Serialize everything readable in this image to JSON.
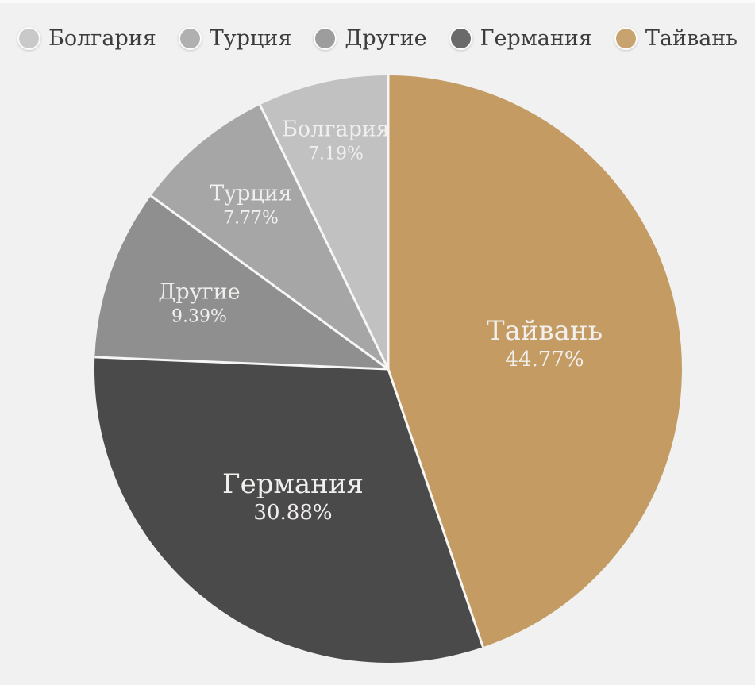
{
  "chart_data": {
    "type": "pie",
    "title": "",
    "legend_position": "top",
    "background_color": "#f1f1f1",
    "separator_color": "#f7f6f4",
    "label_text_color": "#f2f0ee",
    "legend_text_color": "#3c3c3c",
    "slices": [
      {
        "id": "bulgaria",
        "label": "Болгария",
        "value": 7.19,
        "percent_label": "7.19%",
        "color": "#c1c1c1",
        "legend_color": "#c9c9c9"
      },
      {
        "id": "turkey",
        "label": "Турция",
        "value": 7.77,
        "percent_label": "7.77%",
        "color": "#a6a6a6",
        "legend_color": "#b0b0b0"
      },
      {
        "id": "others",
        "label": "Другие",
        "value": 9.39,
        "percent_label": "9.39%",
        "color": "#8f8f8f",
        "legend_color": "#9d9d9d"
      },
      {
        "id": "germany",
        "label": "Германия",
        "value": 30.88,
        "percent_label": "30.88%",
        "color": "#4a4a4a",
        "legend_color": "#6a6a6a"
      },
      {
        "id": "taiwan",
        "label": "Тайвань",
        "value": 44.77,
        "percent_label": "44.77%",
        "color": "#c39b63",
        "legend_color": "#c9a36f"
      }
    ],
    "draw_order_clockwise_from_top": [
      "Тайвань",
      "Германия",
      "Другие",
      "Турция",
      "Болгария"
    ]
  }
}
